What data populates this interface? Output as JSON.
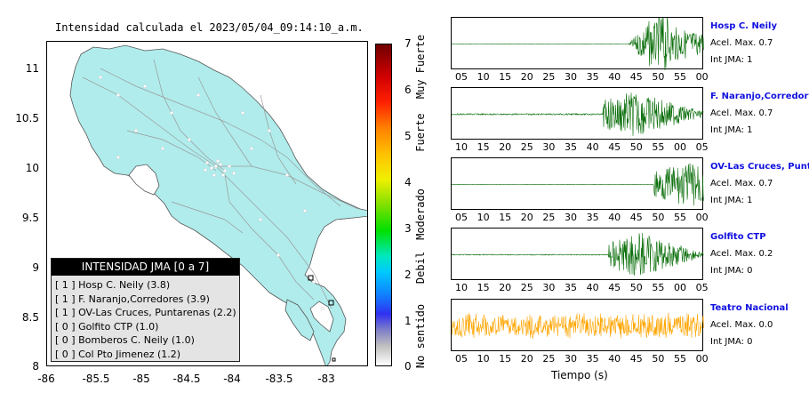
{
  "map": {
    "title": "Intensidad calculada el 2023/05/04_09:14:10_a.m.",
    "y_ticks": [
      "11",
      "10.5",
      "10",
      "9.5",
      "9",
      "8.5",
      "8"
    ],
    "x_ticks": [
      "-86",
      "-85.5",
      "-85",
      "-84.5",
      "-84",
      "-83.5",
      "-83"
    ],
    "land_color": "#b0ecec",
    "legend": {
      "header": "INTENSIDAD JMA [0 a 7]",
      "rows": [
        "[ 1 ]  Hosp C. Neily (3.8)",
        "[ 1 ]  F. Naranjo,Corredores (3.9)",
        "[ 1 ]  OV-Las Cruces, Puntarenas (2.2)",
        "[ 0 ]  Golfito CTP (1.0)",
        "[ 0 ]  Bomberos C. Neily (1.0)",
        "[ 0 ]  Col Pto Jimenez (1.2)"
      ]
    }
  },
  "colorbar": {
    "ticks": [
      "7",
      "6",
      "5",
      "4",
      "3",
      "2",
      "1",
      "0"
    ],
    "labels": [
      "Muy Fuerte",
      "Fuerte",
      "Moderado",
      "Debil",
      "No sentido"
    ]
  },
  "traces": [
    {
      "name": "Hosp C. Neily",
      "acel": "Acel. Max. 0.7",
      "int": "Int JMA: 1",
      "color": "#0a6e0a",
      "ticks": [
        "05",
        "10",
        "15",
        "20",
        "25",
        "30",
        "35",
        "40",
        "45",
        "50",
        "55",
        "00"
      ]
    },
    {
      "name": "F. Naranjo,Corredores",
      "acel": "Acel. Max. 0.7",
      "int": "Int JMA: 1",
      "color": "#0a6e0a",
      "ticks": [
        "10",
        "15",
        "20",
        "25",
        "30",
        "35",
        "40",
        "45",
        "50",
        "55",
        "00",
        "05"
      ]
    },
    {
      "name": "OV-Las Cruces, Puntar",
      "acel": "Acel. Max. 0.7",
      "int": "Int JMA: 1",
      "color": "#0a6e0a",
      "ticks": [
        "05",
        "10",
        "15",
        "20",
        "25",
        "30",
        "35",
        "40",
        "45",
        "50",
        "55",
        "00"
      ]
    },
    {
      "name": "Golfito CTP",
      "acel": "Acel. Max. 0.2",
      "int": "Int JMA: 0",
      "color": "#0a6e0a",
      "ticks": [
        "10",
        "15",
        "20",
        "25",
        "30",
        "35",
        "40",
        "45",
        "50",
        "55",
        "00",
        "05"
      ]
    },
    {
      "name": "Teatro Nacional",
      "acel": "Acel. Max. 0.0",
      "int": "Int JMA: 0",
      "color": "#ffa500",
      "ticks": [
        "05",
        "10",
        "15",
        "20",
        "25",
        "30",
        "35",
        "40",
        "45",
        "50",
        "55",
        "00"
      ]
    }
  ],
  "xaxis_label": "Tiempo (s)"
}
